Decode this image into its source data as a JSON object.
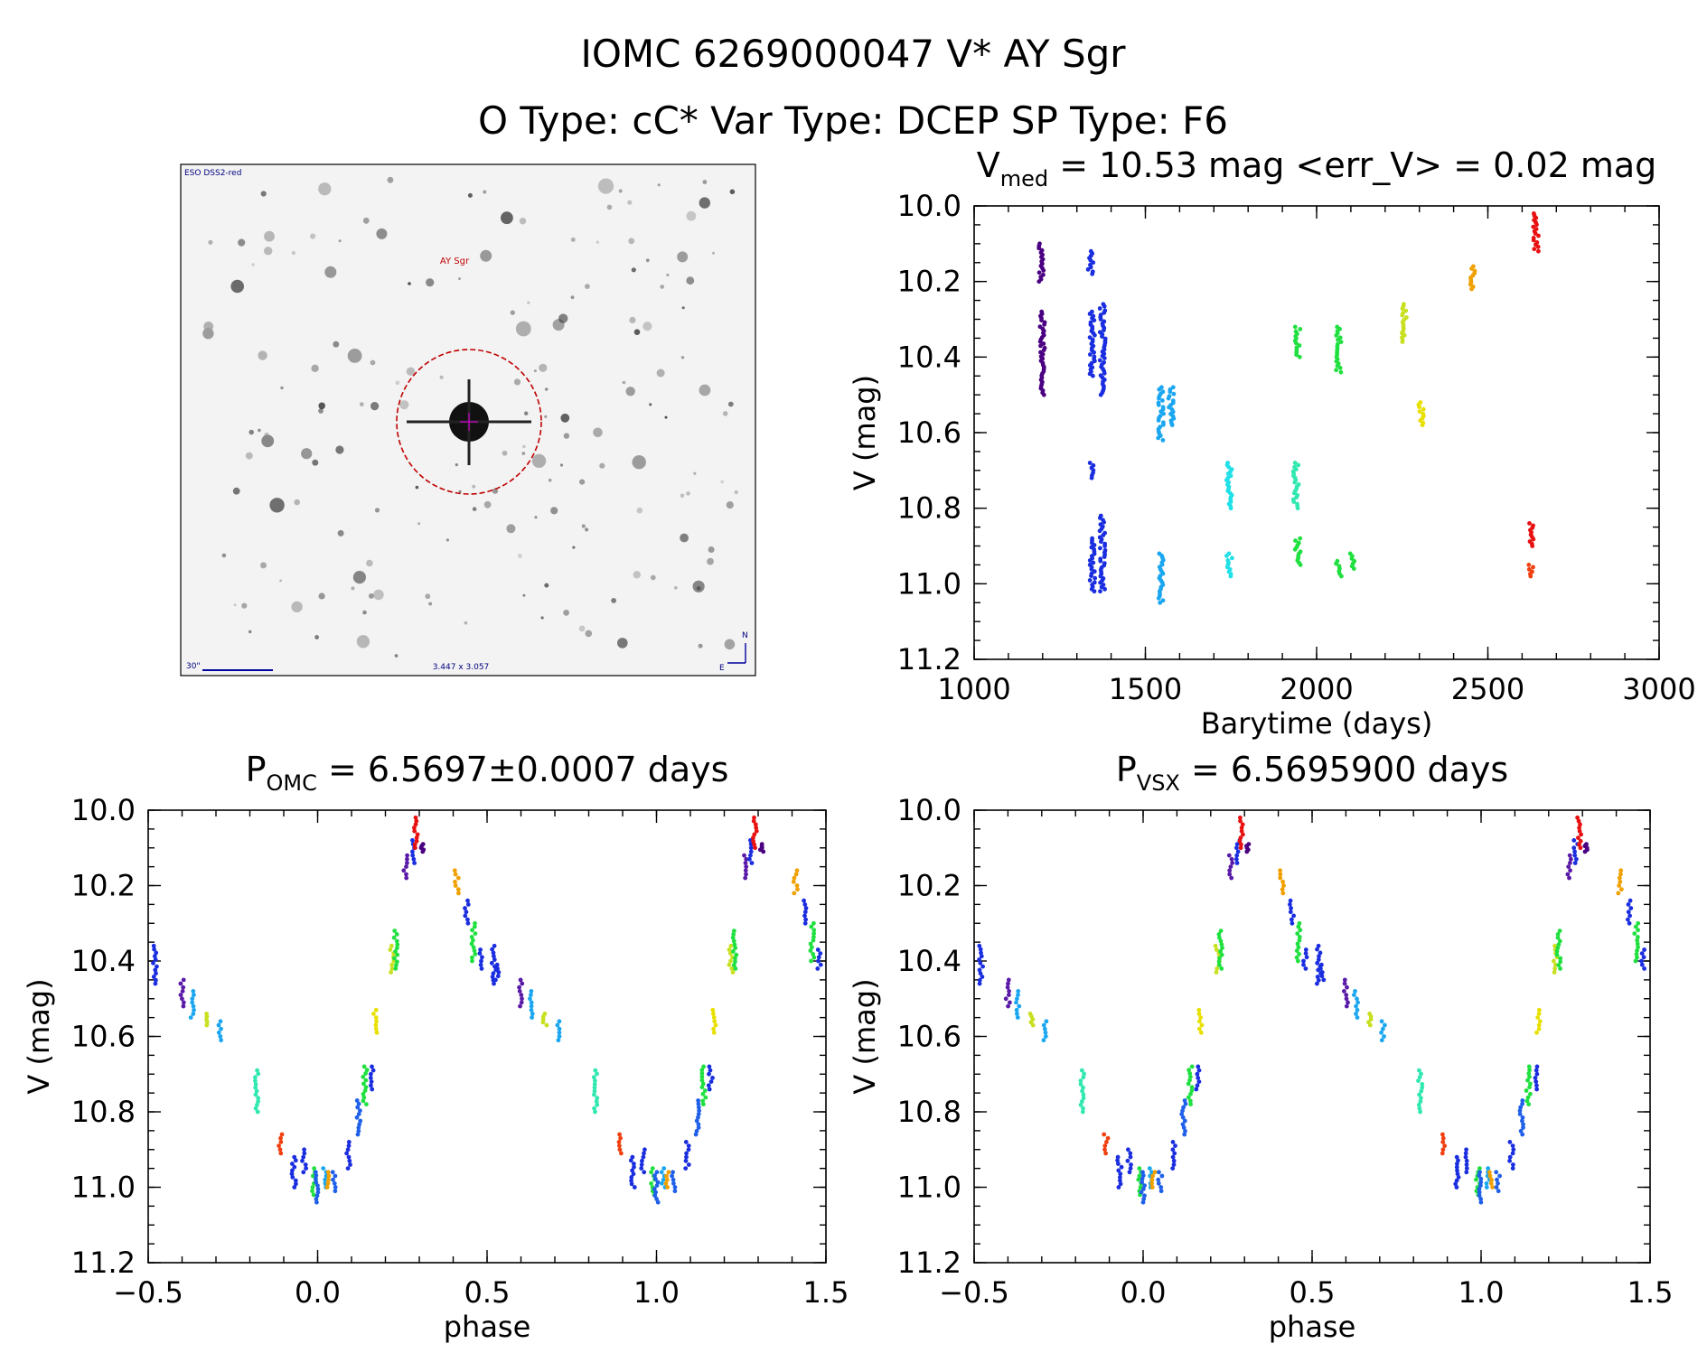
{
  "header": {
    "line1": "IOMC 6269000047   V* AY Sgr",
    "line2": "O Type: cC*  Var Type: DCEP  SP Type: F6"
  },
  "image_panel": {
    "survey_label": "ESO DSS2-red",
    "object_label": "AY Sgr",
    "scale_label": "30\"",
    "size_label": "3.447 x 3.057",
    "north_label": "N",
    "east_label": "E"
  },
  "colors": {
    "darkpurple": "#4b0082",
    "purple": "#5a1aa8",
    "blue": "#1a2ee0",
    "mediumblue": "#2060e8",
    "skyblue": "#1aa6f0",
    "cyan": "#20e0e8",
    "aqua": "#30e8b0",
    "green": "#20e040",
    "yellowgreen": "#c8e020",
    "yellow": "#e8e000",
    "orange": "#f0a000",
    "redorange": "#f04010",
    "red": "#e81010"
  },
  "chart_data": [
    {
      "id": "lightcurve",
      "type": "scatter",
      "title_main": "V",
      "title_sub": "med",
      "title_rest": " = 10.53 mag <err_V> = 0.02 mag",
      "xlabel": "Barytime (days)",
      "ylabel": "V (mag)",
      "xlim": [
        1000,
        3000
      ],
      "ylim": [
        11.2,
        10.0
      ],
      "xticks": [
        1000,
        1500,
        2000,
        2500,
        3000
      ],
      "xtick_labels": [
        "1000",
        "1500",
        "2000",
        "2500",
        "3000"
      ],
      "yticks": [
        10.0,
        10.2,
        10.4,
        10.6,
        10.8,
        11.0,
        11.2
      ],
      "ytick_labels": [
        "10.0",
        "10.2",
        "10.4",
        "10.6",
        "10.8",
        "11.0",
        "11.2"
      ],
      "series": [
        {
          "name": "s1",
          "color": "darkpurple",
          "clusters": [
            [
              1195,
              10.1,
              10.2
            ],
            [
              1200,
              10.28,
              10.5
            ]
          ]
        },
        {
          "name": "s2",
          "color": "blue",
          "clusters": [
            [
              1340,
              10.12,
              10.18
            ],
            [
              1345,
              10.28,
              10.45
            ],
            [
              1345,
              10.68,
              10.72
            ],
            [
              1345,
              10.88,
              11.02
            ]
          ]
        },
        {
          "name": "s3",
          "color": "blue",
          "clusters": [
            [
              1375,
              10.26,
              10.5
            ],
            [
              1375,
              10.82,
              11.02
            ]
          ]
        },
        {
          "name": "s4",
          "color": "skyblue",
          "clusters": [
            [
              1545,
              10.48,
              10.62
            ],
            [
              1545,
              10.92,
              11.05
            ],
            [
              1575,
              10.48,
              10.58
            ]
          ]
        },
        {
          "name": "s5",
          "color": "cyan",
          "clusters": [
            [
              1745,
              10.68,
              10.8
            ],
            [
              1745,
              10.92,
              10.98
            ]
          ]
        },
        {
          "name": "s6",
          "color": "aqua",
          "clusters": [
            [
              1940,
              10.68,
              10.8
            ]
          ]
        },
        {
          "name": "s7",
          "color": "green",
          "clusters": [
            [
              1945,
              10.32,
              10.4
            ],
            [
              1945,
              10.88,
              10.95
            ],
            [
              2065,
              10.32,
              10.44
            ],
            [
              2065,
              10.94,
              10.98
            ],
            [
              2105,
              10.92,
              10.96
            ]
          ]
        },
        {
          "name": "s8",
          "color": "yellowgreen",
          "clusters": [
            [
              2255,
              10.26,
              10.36
            ]
          ]
        },
        {
          "name": "s9",
          "color": "yellow",
          "clusters": [
            [
              2305,
              10.52,
              10.58
            ]
          ]
        },
        {
          "name": "s10",
          "color": "orange",
          "clusters": [
            [
              2455,
              10.16,
              10.22
            ]
          ]
        },
        {
          "name": "s11",
          "color": "redorange",
          "clusters": [
            [
              2625,
              10.95,
              10.98
            ]
          ]
        },
        {
          "name": "s12",
          "color": "red",
          "clusters": [
            [
              2628,
              10.84,
              10.9
            ],
            [
              2640,
              10.02,
              10.12
            ]
          ]
        }
      ]
    },
    {
      "id": "phase_omc",
      "type": "scatter",
      "title_main": "P",
      "title_sub": "OMC",
      "title_rest": " = 6.5697±0.0007 days",
      "xlabel": "phase",
      "ylabel": "V (mag)",
      "xlim": [
        -0.5,
        1.5
      ],
      "ylim": [
        11.2,
        10.0
      ],
      "xticks": [
        -0.5,
        0.0,
        0.5,
        1.0,
        1.5
      ],
      "xtick_labels": [
        "−0.5",
        "0.0",
        "0.5",
        "1.0",
        "1.5"
      ],
      "yticks": [
        10.0,
        10.2,
        10.4,
        10.6,
        10.8,
        11.0,
        11.2
      ],
      "ytick_labels": [
        "10.0",
        "10.2",
        "10.4",
        "10.6",
        "10.8",
        "11.0",
        "11.2"
      ],
      "base_clusters": [
        {
          "p": -0.48,
          "v": [
            10.36,
            10.46
          ],
          "c": "blue"
        },
        {
          "p": -0.4,
          "v": [
            10.45,
            10.52
          ],
          "c": "purple"
        },
        {
          "p": -0.37,
          "v": [
            10.48,
            10.55
          ],
          "c": "skyblue"
        },
        {
          "p": -0.33,
          "v": [
            10.54,
            10.57
          ],
          "c": "yellowgreen"
        },
        {
          "p": -0.29,
          "v": [
            10.56,
            10.61
          ],
          "c": "skyblue"
        },
        {
          "p": -0.18,
          "v": [
            10.69,
            10.8
          ],
          "c": "aqua"
        },
        {
          "p": -0.11,
          "v": [
            10.86,
            10.91
          ],
          "c": "redorange"
        },
        {
          "p": -0.07,
          "v": [
            10.92,
            11.0
          ],
          "c": "blue"
        },
        {
          "p": -0.04,
          "v": [
            10.9,
            10.96
          ],
          "c": "blue"
        },
        {
          "p": -0.01,
          "v": [
            10.95,
            11.02
          ],
          "c": "green"
        },
        {
          "p": 0.0,
          "v": [
            10.96,
            11.04
          ],
          "c": "mediumblue"
        },
        {
          "p": 0.02,
          "v": [
            10.95,
            11.0
          ],
          "c": "skyblue"
        },
        {
          "p": 0.03,
          "v": [
            10.96,
            11.0
          ],
          "c": "orange"
        },
        {
          "p": 0.05,
          "v": [
            10.96,
            11.01
          ],
          "c": "mediumblue"
        },
        {
          "p": 0.09,
          "v": [
            10.88,
            10.95
          ],
          "c": "blue"
        },
        {
          "p": 0.12,
          "v": [
            10.77,
            10.86
          ],
          "c": "mediumblue"
        },
        {
          "p": 0.14,
          "v": [
            10.68,
            10.78
          ],
          "c": "green"
        },
        {
          "p": 0.16,
          "v": [
            10.68,
            10.74
          ],
          "c": "blue"
        },
        {
          "p": 0.17,
          "v": [
            10.53,
            10.59
          ],
          "c": "yellow"
        },
        {
          "p": 0.22,
          "v": [
            10.36,
            10.43
          ],
          "c": "yellowgreen"
        },
        {
          "p": 0.23,
          "v": [
            10.32,
            10.42
          ],
          "c": "green"
        },
        {
          "p": 0.26,
          "v": [
            10.12,
            10.18
          ],
          "c": "purple"
        },
        {
          "p": 0.28,
          "v": [
            10.08,
            10.14
          ],
          "c": "blue"
        },
        {
          "p": 0.29,
          "v": [
            10.02,
            10.1
          ],
          "c": "red"
        },
        {
          "p": 0.31,
          "v": [
            10.09,
            10.11
          ],
          "c": "darkpurple"
        },
        {
          "p": 0.41,
          "v": [
            10.16,
            10.22
          ],
          "c": "orange"
        },
        {
          "p": 0.44,
          "v": [
            10.24,
            10.3
          ],
          "c": "blue"
        },
        {
          "p": 0.46,
          "v": [
            10.3,
            10.4
          ],
          "c": "green"
        },
        {
          "p": 0.48,
          "v": [
            10.37,
            10.42
          ],
          "c": "blue"
        },
        {
          "p": 0.53,
          "v": [
            10.41,
            10.45
          ],
          "c": "blue"
        }
      ],
      "offsets": [
        0,
        1
      ]
    },
    {
      "id": "phase_vsx",
      "type": "scatter",
      "title_main": "P",
      "title_sub": "VSX",
      "title_rest": " = 6.5695900 days",
      "xlabel": "phase",
      "ylabel": "V (mag)",
      "xlim": [
        -0.5,
        1.5
      ],
      "ylim": [
        11.2,
        10.0
      ],
      "xticks": [
        -0.5,
        0.0,
        0.5,
        1.0,
        1.5
      ],
      "xtick_labels": [
        "−0.5",
        "0.0",
        "0.5",
        "1.0",
        "1.5"
      ],
      "yticks": [
        10.0,
        10.2,
        10.4,
        10.6,
        10.8,
        11.0,
        11.2
      ],
      "ytick_labels": [
        "10.0",
        "10.2",
        "10.4",
        "10.6",
        "10.8",
        "11.0",
        "11.2"
      ],
      "same_as": "phase_omc"
    }
  ]
}
